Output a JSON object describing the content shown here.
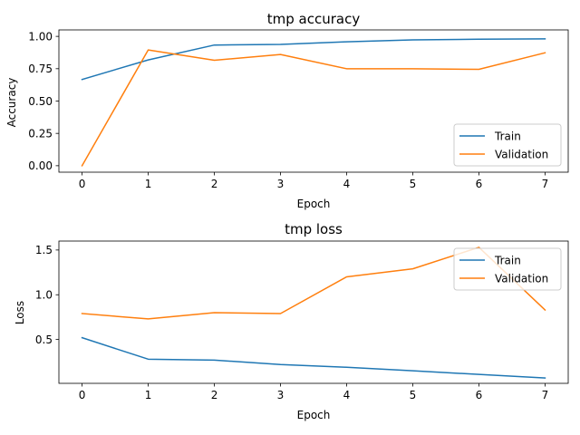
{
  "chart_data": [
    {
      "type": "line",
      "title": "tmp accuracy",
      "xlabel": "Epoch",
      "ylabel": "Accuracy",
      "x": [
        0,
        1,
        2,
        3,
        4,
        5,
        6,
        7
      ],
      "xlim": [
        -0.35,
        7.35
      ],
      "ylim": [
        -0.05,
        1.05
      ],
      "xticks": [
        "0",
        "1",
        "2",
        "3",
        "4",
        "5",
        "6",
        "7"
      ],
      "yticks": [
        "0.00",
        "0.25",
        "0.50",
        "0.75",
        "1.00"
      ],
      "ytick_values": [
        0.0,
        0.25,
        0.5,
        0.75,
        1.0
      ],
      "grid": false,
      "legend_position": "lower-right",
      "series": [
        {
          "name": "Train",
          "color": "#1f77b4",
          "values": [
            0.667,
            0.818,
            0.933,
            0.938,
            0.958,
            0.973,
            0.978,
            0.981
          ]
        },
        {
          "name": "Validation",
          "color": "#ff7f0e",
          "values": [
            0.0,
            0.895,
            0.815,
            0.86,
            0.75,
            0.75,
            0.745,
            0.873
          ]
        }
      ]
    },
    {
      "type": "line",
      "title": "tmp loss",
      "xlabel": "Epoch",
      "ylabel": "Loss",
      "x": [
        0,
        1,
        2,
        3,
        4,
        5,
        6,
        7
      ],
      "xlim": [
        -0.35,
        7.35
      ],
      "ylim": [
        0.01,
        1.6
      ],
      "xticks": [
        "0",
        "1",
        "2",
        "3",
        "4",
        "5",
        "6",
        "7"
      ],
      "yticks": [
        "0.5",
        "1.0",
        "1.5"
      ],
      "ytick_values": [
        0.5,
        1.0,
        1.5
      ],
      "grid": false,
      "legend_position": "upper-right",
      "series": [
        {
          "name": "Train",
          "color": "#1f77b4",
          "values": [
            0.52,
            0.28,
            0.27,
            0.22,
            0.19,
            0.15,
            0.11,
            0.07
          ]
        },
        {
          "name": "Validation",
          "color": "#ff7f0e",
          "values": [
            0.79,
            0.73,
            0.8,
            0.79,
            1.2,
            1.29,
            1.53,
            0.83
          ]
        }
      ]
    }
  ]
}
